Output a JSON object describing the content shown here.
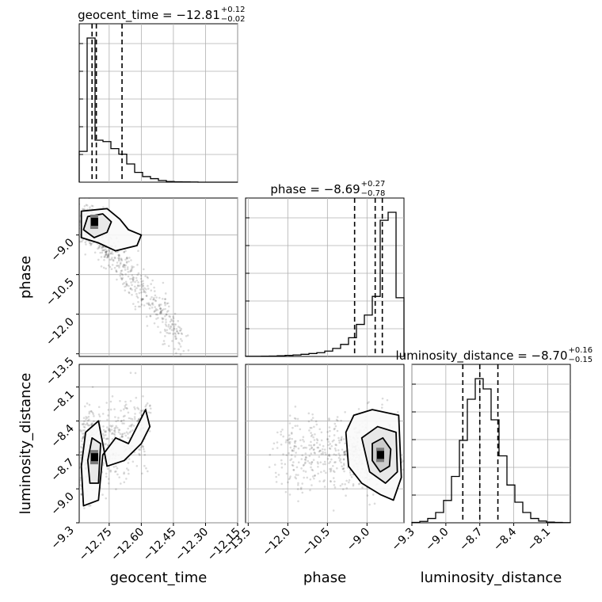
{
  "chart_data": {
    "type": "corner",
    "parameters": [
      "geocent_time",
      "phase",
      "luminosity_distance"
    ],
    "axis_labels": {
      "geocent_time": "geocent_time",
      "phase": "phase",
      "luminosity_distance": "luminosity_distance"
    },
    "ranges": {
      "geocent_time": [
        -12.89,
        -12.15
      ],
      "phase": [
        -13.6,
        -7.6
      ],
      "luminosity_distance": [
        -9.3,
        -7.9
      ]
    },
    "ticks": {
      "geocent_time": {
        "values": [
          -12.75,
          -12.6,
          -12.45,
          -12.3,
          -12.15
        ],
        "labels": [
          "−12.75",
          "−12.60",
          "−12.45",
          "−12.30",
          "−12.15"
        ]
      },
      "phase": {
        "values": [
          -13.5,
          -12.0,
          -10.5,
          -9.0
        ],
        "labels": [
          "−13.5",
          "−12.0",
          "−10.5",
          "−9.0"
        ]
      },
      "luminosity_distance": {
        "values": [
          -9.3,
          -9.0,
          -8.7,
          -8.4,
          -8.1
        ],
        "labels": [
          "−9.3",
          "−9.0",
          "−8.7",
          "−8.4",
          "−8.1"
        ]
      }
    },
    "titles": {
      "geocent_time": {
        "text": "geocent_time = −12.81",
        "plus": "+0.12",
        "minus": "−0.02"
      },
      "phase": {
        "text": "phase = −8.69",
        "plus": "+0.27",
        "minus": "−0.78"
      },
      "luminosity_distance": {
        "text": "luminosity_distance = −8.70",
        "plus": "+0.16",
        "minus": "−0.15"
      }
    },
    "histograms": {
      "geocent_time": {
        "edges": [
          -12.89,
          -12.853,
          -12.816,
          -12.779,
          -12.742,
          -12.705,
          -12.668,
          -12.631,
          -12.594,
          -12.557,
          -12.52,
          -12.483,
          -12.446,
          -12.409,
          -12.372,
          -12.335,
          -12.298,
          -12.261,
          -12.224,
          -12.187,
          -12.15
        ],
        "counts": [
          220,
          1030,
          300,
          290,
          240,
          200,
          130,
          70,
          40,
          25,
          12,
          5,
          3,
          2,
          1,
          0,
          0,
          0,
          0,
          0
        ],
        "quantiles": [
          -12.83,
          -12.81,
          -12.69
        ]
      },
      "phase": {
        "edges": [
          -13.6,
          -13.3,
          -13.0,
          -12.7,
          -12.4,
          -12.1,
          -11.8,
          -11.5,
          -11.2,
          -10.9,
          -10.6,
          -10.3,
          -10.0,
          -9.7,
          -9.4,
          -9.1,
          -8.8,
          -8.5,
          -8.2,
          -7.9,
          -7.6
        ],
        "counts": [
          1,
          1,
          2,
          3,
          5,
          8,
          11,
          16,
          22,
          28,
          40,
          60,
          90,
          140,
          240,
          310,
          450,
          1020,
          1080,
          440
        ],
        "quantiles": [
          -9.47,
          -8.69,
          -8.42
        ]
      },
      "luminosity_distance": {
        "edges": [
          -9.3,
          -9.23,
          -9.16,
          -9.09,
          -9.02,
          -8.95,
          -8.88,
          -8.81,
          -8.74,
          -8.67,
          -8.6,
          -8.53,
          -8.46,
          -8.39,
          -8.32,
          -8.25,
          -8.18,
          -8.11,
          -8.04,
          -7.97,
          -7.9
        ],
        "counts": [
          2,
          8,
          25,
          60,
          130,
          270,
          480,
          720,
          840,
          780,
          600,
          390,
          220,
          120,
          60,
          25,
          10,
          4,
          2,
          1
        ],
        "quantiles": [
          -8.85,
          -8.7,
          -8.54
        ]
      }
    },
    "scatter_clusters": {
      "geocent_time_vs_phase": {
        "trend": "negative",
        "peak": [
          -12.82,
          -8.5
        ]
      },
      "geocent_time_vs_luminosity_distance": {
        "peak": [
          -12.82,
          -8.72
        ]
      },
      "phase_vs_luminosity_distance": {
        "peak": [
          -8.5,
          -8.7
        ]
      }
    },
    "contours": {
      "geocent_time_vs_phase": [
        [
          [
            -12.88,
            -8.1
          ],
          [
            -12.76,
            -8.0
          ],
          [
            -12.7,
            -8.4
          ],
          [
            -12.66,
            -8.8
          ],
          [
            -12.6,
            -9.0
          ],
          [
            -12.62,
            -9.4
          ],
          [
            -12.72,
            -9.6
          ],
          [
            -12.8,
            -9.3
          ],
          [
            -12.88,
            -9.1
          ]
        ],
        [
          [
            -12.85,
            -8.3
          ],
          [
            -12.78,
            -8.2
          ],
          [
            -12.74,
            -8.5
          ],
          [
            -12.76,
            -8.9
          ],
          [
            -12.82,
            -9.1
          ],
          [
            -12.87,
            -8.8
          ]
        ]
      ],
      "geocent_time_vs_luminosity_distance": [
        [
          [
            -12.87,
            -9.15
          ],
          [
            -12.8,
            -9.1
          ],
          [
            -12.78,
            -8.7
          ],
          [
            -12.72,
            -8.55
          ],
          [
            -12.66,
            -8.6
          ],
          [
            -12.62,
            -8.45
          ],
          [
            -12.58,
            -8.3
          ],
          [
            -12.56,
            -8.45
          ],
          [
            -12.6,
            -8.6
          ],
          [
            -12.68,
            -8.75
          ],
          [
            -12.76,
            -8.8
          ],
          [
            -12.8,
            -8.4
          ],
          [
            -12.86,
            -8.5
          ],
          [
            -12.88,
            -8.8
          ]
        ],
        [
          [
            -12.84,
            -8.95
          ],
          [
            -12.8,
            -8.95
          ],
          [
            -12.79,
            -8.6
          ],
          [
            -12.83,
            -8.55
          ],
          [
            -12.85,
            -8.75
          ]
        ]
      ],
      "phase_vs_luminosity_distance": [
        [
          [
            -9.8,
            -8.5
          ],
          [
            -9.5,
            -8.35
          ],
          [
            -8.8,
            -8.3
          ],
          [
            -7.8,
            -8.35
          ],
          [
            -7.7,
            -8.9
          ],
          [
            -8.0,
            -9.1
          ],
          [
            -8.5,
            -9.05
          ],
          [
            -9.2,
            -8.95
          ],
          [
            -9.7,
            -8.8
          ]
        ],
        [
          [
            -9.2,
            -8.55
          ],
          [
            -8.6,
            -8.45
          ],
          [
            -7.9,
            -8.5
          ],
          [
            -7.85,
            -8.85
          ],
          [
            -8.3,
            -8.95
          ],
          [
            -8.9,
            -8.85
          ]
        ],
        [
          [
            -8.8,
            -8.6
          ],
          [
            -8.4,
            -8.55
          ],
          [
            -8.1,
            -8.65
          ],
          [
            -8.15,
            -8.8
          ],
          [
            -8.5,
            -8.85
          ],
          [
            -8.8,
            -8.75
          ]
        ]
      ]
    },
    "grid": true
  }
}
